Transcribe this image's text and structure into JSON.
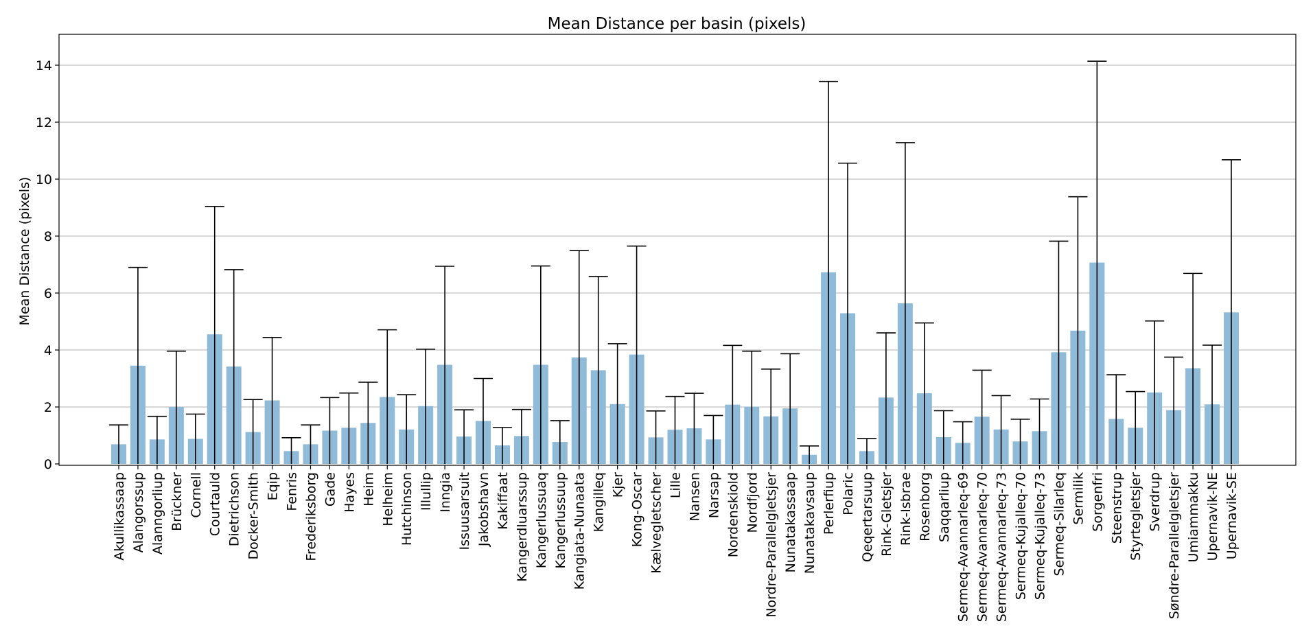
{
  "chart_data": {
    "type": "bar",
    "title": "Mean Distance per basin (pixels)",
    "xlabel": "",
    "ylabel": "Mean Distance (pixels)",
    "ylim": [
      -0.2,
      15.1
    ],
    "yticks": [
      0,
      2,
      4,
      6,
      8,
      10,
      12,
      14
    ],
    "grid": "horizontal",
    "bar_color": "#8fbbd9",
    "categories": [
      "Akullikassaap",
      "Alangorssup",
      "Alanngorliup",
      "Brückner",
      "Cornell",
      "Courtauld",
      "Dietrichson",
      "Docker-Smith",
      "Eqip",
      "Fenris",
      "Frederiksborg",
      "Gade",
      "Hayes",
      "Heim",
      "Helheim",
      "Hutchinson",
      "Illullip",
      "Inngia",
      "Issuusarsuit",
      "Jakobshavn",
      "Kakiffaat",
      "Kangerdluarssup",
      "Kangerlussuaq",
      "Kangerlussuup",
      "Kangiata-Nunaata",
      "Kangilleq",
      "Kjer",
      "Kong-Oscar",
      "Kælvegletscher",
      "Lille",
      "Nansen",
      "Narsap",
      "Nordenskiold",
      "Nordfjord",
      "Nordre-Parallelgletsjer",
      "Nunatakassaap",
      "Nunatakavsaup",
      "Perlerfiup",
      "Polaric",
      "Qeqertarsuup",
      "Rink-Gletsjer",
      "Rink-Isbrae",
      "Rosenborg",
      "Saqqarliup",
      "Sermeq-Avannarleq-69",
      "Sermeq-Avannarleq-70",
      "Sermeq-Avannarleq-73",
      "Sermeq-Kujalleq-70",
      "Sermeq-Kujalleq-73",
      "Sermeq-Silarleq",
      "Sermilik",
      "Sorgenfri",
      "Steenstrup",
      "Styrtegletsjer",
      "Sverdrup",
      "Søndre-Parallelgletsjer",
      "Umiammakku",
      "Upernavik-NE",
      "Upernavik-SE"
    ],
    "values": [
      0.69,
      3.45,
      0.86,
      2.0,
      0.88,
      4.55,
      3.42,
      1.12,
      2.23,
      0.45,
      0.69,
      1.17,
      1.27,
      1.44,
      2.35,
      1.21,
      2.03,
      3.48,
      0.96,
      1.51,
      0.65,
      0.98,
      3.48,
      0.77,
      3.74,
      3.29,
      2.1,
      3.84,
      0.93,
      1.2,
      1.25,
      0.86,
      2.08,
      2.01,
      1.67,
      1.95,
      0.32,
      6.73,
      5.29,
      0.45,
      2.33,
      5.64,
      2.48,
      0.94,
      0.74,
      1.66,
      1.21,
      0.79,
      1.15,
      3.92,
      4.68,
      7.07,
      1.58,
      1.27,
      2.51,
      1.89,
      3.36,
      2.09,
      5.32
    ],
    "error_upper": [
      1.37,
      6.9,
      1.67,
      3.96,
      1.75,
      9.04,
      6.82,
      2.26,
      4.44,
      0.92,
      1.37,
      2.33,
      2.49,
      2.87,
      4.71,
      2.43,
      4.03,
      6.94,
      1.9,
      3.0,
      1.28,
      1.91,
      6.95,
      1.52,
      7.49,
      6.58,
      4.22,
      7.65,
      1.86,
      2.37,
      2.48,
      1.7,
      4.16,
      3.96,
      3.33,
      3.87,
      0.63,
      13.43,
      10.56,
      0.89,
      4.6,
      11.28,
      4.95,
      1.87,
      1.48,
      3.29,
      2.4,
      1.57,
      2.28,
      7.82,
      9.38,
      14.14,
      3.13,
      2.54,
      5.02,
      3.75,
      6.69,
      4.17,
      10.68
    ]
  }
}
